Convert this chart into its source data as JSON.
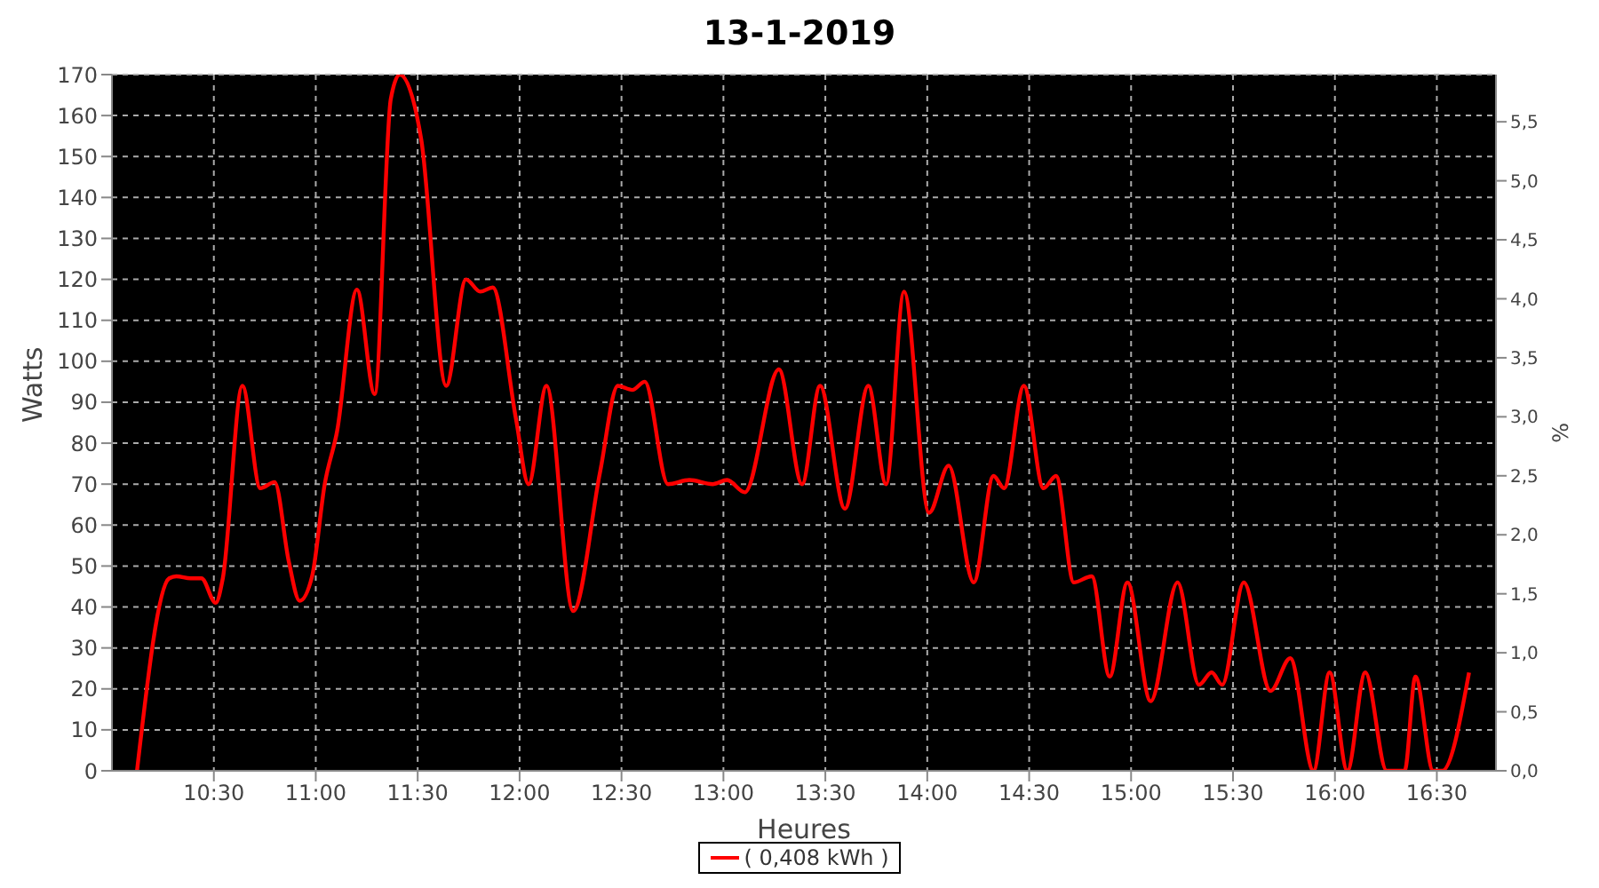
{
  "chart_data": {
    "type": "line",
    "title": "13-1-2019",
    "xlabel": "Heures",
    "ylabel": "Watts",
    "y2label": "%",
    "x": [
      10.123,
      10.281,
      10.316,
      10.386,
      10.439,
      10.509,
      10.544,
      10.64,
      10.728,
      10.798,
      10.868,
      10.921,
      10.982,
      11.044,
      11.105,
      11.202,
      11.289,
      11.368,
      11.412,
      11.518,
      11.64,
      11.737,
      11.807,
      11.868,
      11.982,
      12.044,
      12.132,
      12.263,
      12.395,
      12.482,
      12.553,
      12.614,
      12.728,
      12.833,
      12.947,
      13.018,
      13.105,
      13.272,
      13.386,
      13.474,
      13.596,
      13.711,
      13.798,
      13.886,
      14.009,
      14.105,
      14.228,
      14.325,
      14.377,
      14.474,
      14.57,
      14.632,
      14.719,
      14.807,
      14.895,
      14.982,
      15.096,
      15.228,
      15.333,
      15.395,
      15.447,
      15.553,
      15.684,
      15.781,
      15.895,
      15.974,
      16.061,
      16.149,
      16.254,
      16.342,
      16.395,
      16.482,
      16.526,
      16.658
    ],
    "series": [
      {
        "name": "( 0,408 kWh )",
        "color": "#ff0000",
        "values": [
          0,
          47,
          47.5,
          47,
          47,
          41,
          47,
          94,
          69,
          70.5,
          51,
          41.5,
          47.5,
          70,
          83,
          117.5,
          92,
          164,
          170,
          154,
          94,
          120,
          117,
          118,
          86,
          70,
          94,
          39,
          73,
          94,
          93,
          95,
          70,
          71,
          70,
          71,
          68,
          98,
          70,
          94,
          64,
          94,
          70,
          117,
          63,
          74.5,
          46,
          72,
          69,
          94,
          69,
          72,
          46,
          47.5,
          23,
          46,
          17,
          46,
          21,
          24,
          21,
          46,
          19.5,
          27.5,
          0,
          24,
          0,
          24,
          0,
          0,
          23,
          0,
          0,
          24
        ]
      }
    ],
    "xlim": [
      10.0,
      16.79
    ],
    "xticks": [
      {
        "value": 10.5,
        "label": "10:30"
      },
      {
        "value": 11,
        "label": "11:00"
      },
      {
        "value": 11.5,
        "label": "11:30"
      },
      {
        "value": 12,
        "label": "12:00"
      },
      {
        "value": 12.5,
        "label": "12:30"
      },
      {
        "value": 13,
        "label": "13:00"
      },
      {
        "value": 13.5,
        "label": "13:30"
      },
      {
        "value": 14,
        "label": "14:00"
      },
      {
        "value": 14.5,
        "label": "14:30"
      },
      {
        "value": 15,
        "label": "15:00"
      },
      {
        "value": 15.5,
        "label": "15:30"
      },
      {
        "value": 16,
        "label": "16:00"
      },
      {
        "value": 16.5,
        "label": "16:30"
      }
    ],
    "ylim": [
      0,
      170
    ],
    "yticks": [
      0,
      10,
      20,
      30,
      40,
      50,
      60,
      70,
      80,
      90,
      100,
      110,
      120,
      130,
      140,
      150,
      160,
      170
    ],
    "y2lim": [
      0,
      5.9
    ],
    "y2ticks": [
      {
        "value": 0,
        "label": "0,0"
      },
      {
        "value": 0.5,
        "label": "0,5"
      },
      {
        "value": 1,
        "label": "1,0"
      },
      {
        "value": 1.5,
        "label": "1,5"
      },
      {
        "value": 2,
        "label": "2,0"
      },
      {
        "value": 2.5,
        "label": "2,5"
      },
      {
        "value": 3,
        "label": "3,0"
      },
      {
        "value": 3.5,
        "label": "3,5"
      },
      {
        "value": 4,
        "label": "4,0"
      },
      {
        "value": 4.5,
        "label": "4,5"
      },
      {
        "value": 5,
        "label": "5,0"
      },
      {
        "value": 5.5,
        "label": "5,5"
      }
    ],
    "grid": true,
    "legend": "bottom",
    "marker": "none",
    "line_style": "solid"
  }
}
